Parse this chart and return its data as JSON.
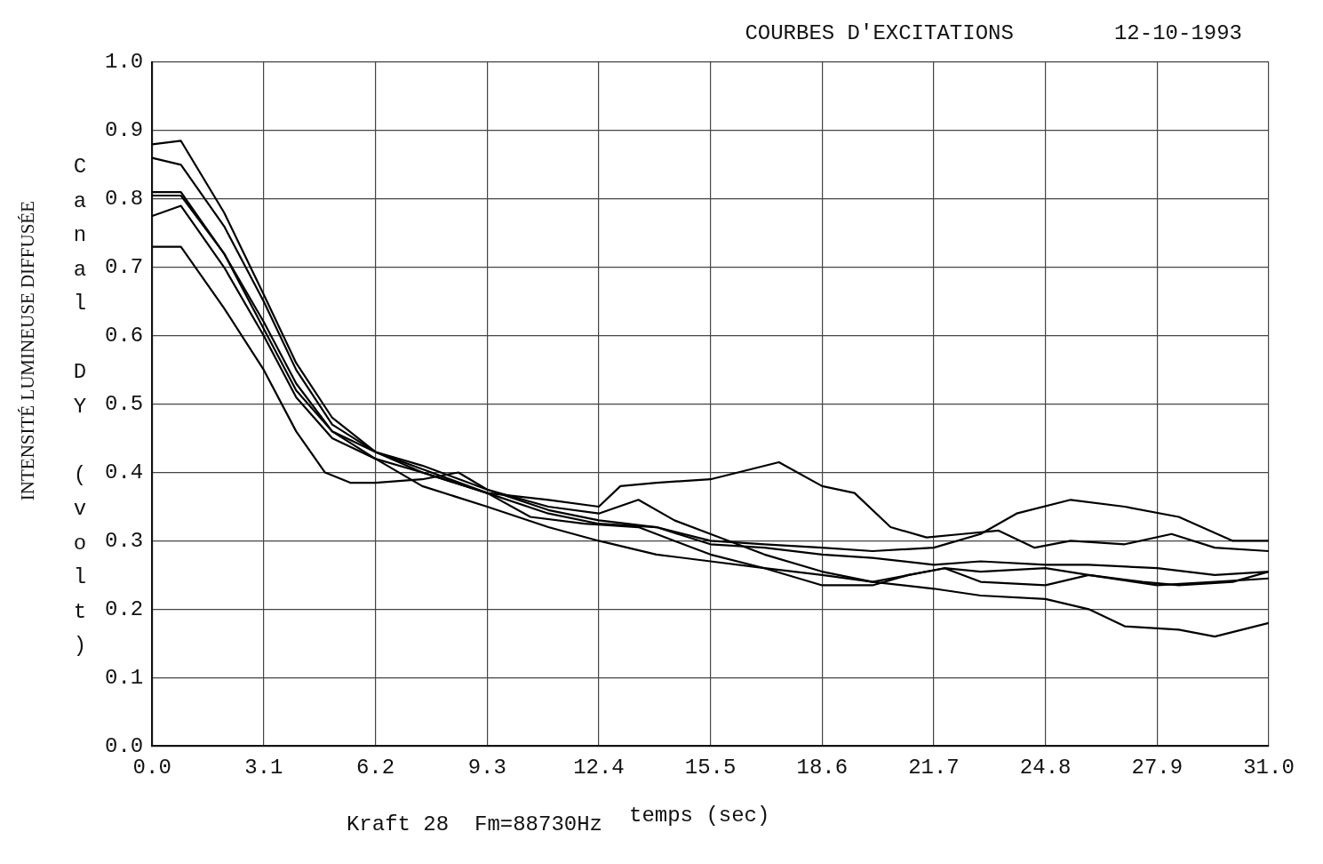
{
  "chart_data": {
    "type": "line",
    "title": "COURBES D'EXCITATIONS",
    "xlabel": "temps (sec)",
    "ylabel": "Canal DY (volt)",
    "annotations": [
      "12-10-1993",
      "INTENSITÉ LUMINEUSE DIFFUSÉE",
      "Kraft 28  Fm=88730Hz"
    ],
    "xlim": [
      0,
      31
    ],
    "ylim": [
      0,
      1
    ],
    "xticks": [
      {
        "value": 0,
        "label": "0.0"
      },
      3.1,
      6.2,
      9.3,
      12.4,
      15.5,
      18.6,
      21.7,
      24.8,
      27.9,
      {
        "value": 31,
        "label": "31.0"
      }
    ],
    "yticks": [
      {
        "value": 0,
        "label": "0.0"
      },
      0.1,
      0.2,
      0.3,
      0.4,
      0.5,
      0.6,
      0.7,
      0.8,
      0.9,
      {
        "value": 1,
        "label": "1.0"
      }
    ],
    "grid": true,
    "legend": false,
    "marker": "none",
    "line_style": "solid",
    "series": [
      {
        "color": "#000000",
        "x": [
          0,
          0.8,
          2,
          3.1,
          4,
          5,
          6.2,
          7.5,
          9.3,
          11,
          12.4,
          14,
          15.5,
          17,
          18.6,
          20,
          21.7,
          23,
          24,
          25.5,
          27,
          28.5,
          30,
          31
        ],
        "values": [
          0.88,
          0.885,
          0.78,
          0.66,
          0.56,
          0.48,
          0.43,
          0.4,
          0.37,
          0.34,
          0.325,
          0.32,
          0.3,
          0.295,
          0.29,
          0.285,
          0.29,
          0.31,
          0.34,
          0.36,
          0.35,
          0.335,
          0.3,
          0.3
        ]
      },
      {
        "color": "#000000",
        "x": [
          0,
          0.8,
          2,
          3.1,
          4,
          5,
          6.2,
          7.5,
          9.3,
          11,
          12.4,
          13,
          14,
          15.5,
          17.4,
          18.6,
          19.5,
          20.5,
          21.5,
          22.5,
          23.5,
          24.5,
          25.5,
          27,
          28.3,
          29.5,
          31
        ],
        "values": [
          0.86,
          0.85,
          0.76,
          0.65,
          0.55,
          0.47,
          0.43,
          0.405,
          0.37,
          0.36,
          0.35,
          0.38,
          0.385,
          0.39,
          0.415,
          0.38,
          0.37,
          0.32,
          0.305,
          0.31,
          0.315,
          0.29,
          0.3,
          0.295,
          0.31,
          0.29,
          0.285
        ]
      },
      {
        "color": "#000000",
        "x": [
          0,
          0.8,
          2,
          3.1,
          4,
          5,
          6.2,
          7.5,
          9.3,
          11,
          12.4,
          14,
          15.5,
          17,
          18.6,
          20,
          21.7,
          23,
          24.8,
          26,
          27,
          28.5,
          29.5,
          31
        ],
        "values": [
          0.81,
          0.81,
          0.72,
          0.62,
          0.53,
          0.46,
          0.42,
          0.38,
          0.35,
          0.32,
          0.3,
          0.28,
          0.27,
          0.26,
          0.25,
          0.24,
          0.23,
          0.22,
          0.215,
          0.2,
          0.175,
          0.17,
          0.16,
          0.18
        ]
      },
      {
        "color": "#000000",
        "x": [
          0,
          0.8,
          2,
          3.1,
          4,
          5,
          6.2,
          7.5,
          9.3,
          11,
          12.4,
          14,
          15.5,
          17,
          18.6,
          20,
          21.7,
          23,
          24.8,
          26,
          27.9,
          29.5,
          31
        ],
        "values": [
          0.805,
          0.805,
          0.72,
          0.61,
          0.52,
          0.46,
          0.43,
          0.41,
          0.375,
          0.345,
          0.33,
          0.32,
          0.295,
          0.29,
          0.28,
          0.275,
          0.265,
          0.27,
          0.265,
          0.265,
          0.26,
          0.25,
          0.255
        ]
      },
      {
        "color": "#000000",
        "x": [
          0,
          0.8,
          2,
          3.1,
          4,
          5,
          6.2,
          7.5,
          9.3,
          10.5,
          12,
          13.5,
          14.5,
          15.5,
          17,
          18.6,
          20,
          21,
          22,
          23,
          24.8,
          26,
          27.5,
          28.5,
          30,
          31
        ],
        "values": [
          0.775,
          0.79,
          0.7,
          0.6,
          0.51,
          0.45,
          0.42,
          0.4,
          0.37,
          0.335,
          0.325,
          0.32,
          0.3,
          0.28,
          0.26,
          0.235,
          0.235,
          0.25,
          0.26,
          0.255,
          0.26,
          0.25,
          0.24,
          0.235,
          0.24,
          0.255
        ]
      },
      {
        "color": "#000000",
        "x": [
          0,
          0.8,
          2,
          3.1,
          4,
          4.8,
          5.5,
          6.2,
          7.5,
          8.5,
          9.3,
          11,
          12.4,
          13.5,
          14.5,
          15.5,
          17,
          18.6,
          20,
          21,
          22,
          23,
          24.8,
          26,
          27.9,
          29.5,
          31
        ],
        "values": [
          0.73,
          0.73,
          0.64,
          0.55,
          0.46,
          0.4,
          0.385,
          0.385,
          0.39,
          0.4,
          0.375,
          0.35,
          0.34,
          0.36,
          0.33,
          0.31,
          0.28,
          0.255,
          0.24,
          0.25,
          0.26,
          0.24,
          0.235,
          0.25,
          0.235,
          0.24,
          0.245
        ]
      }
    ]
  }
}
